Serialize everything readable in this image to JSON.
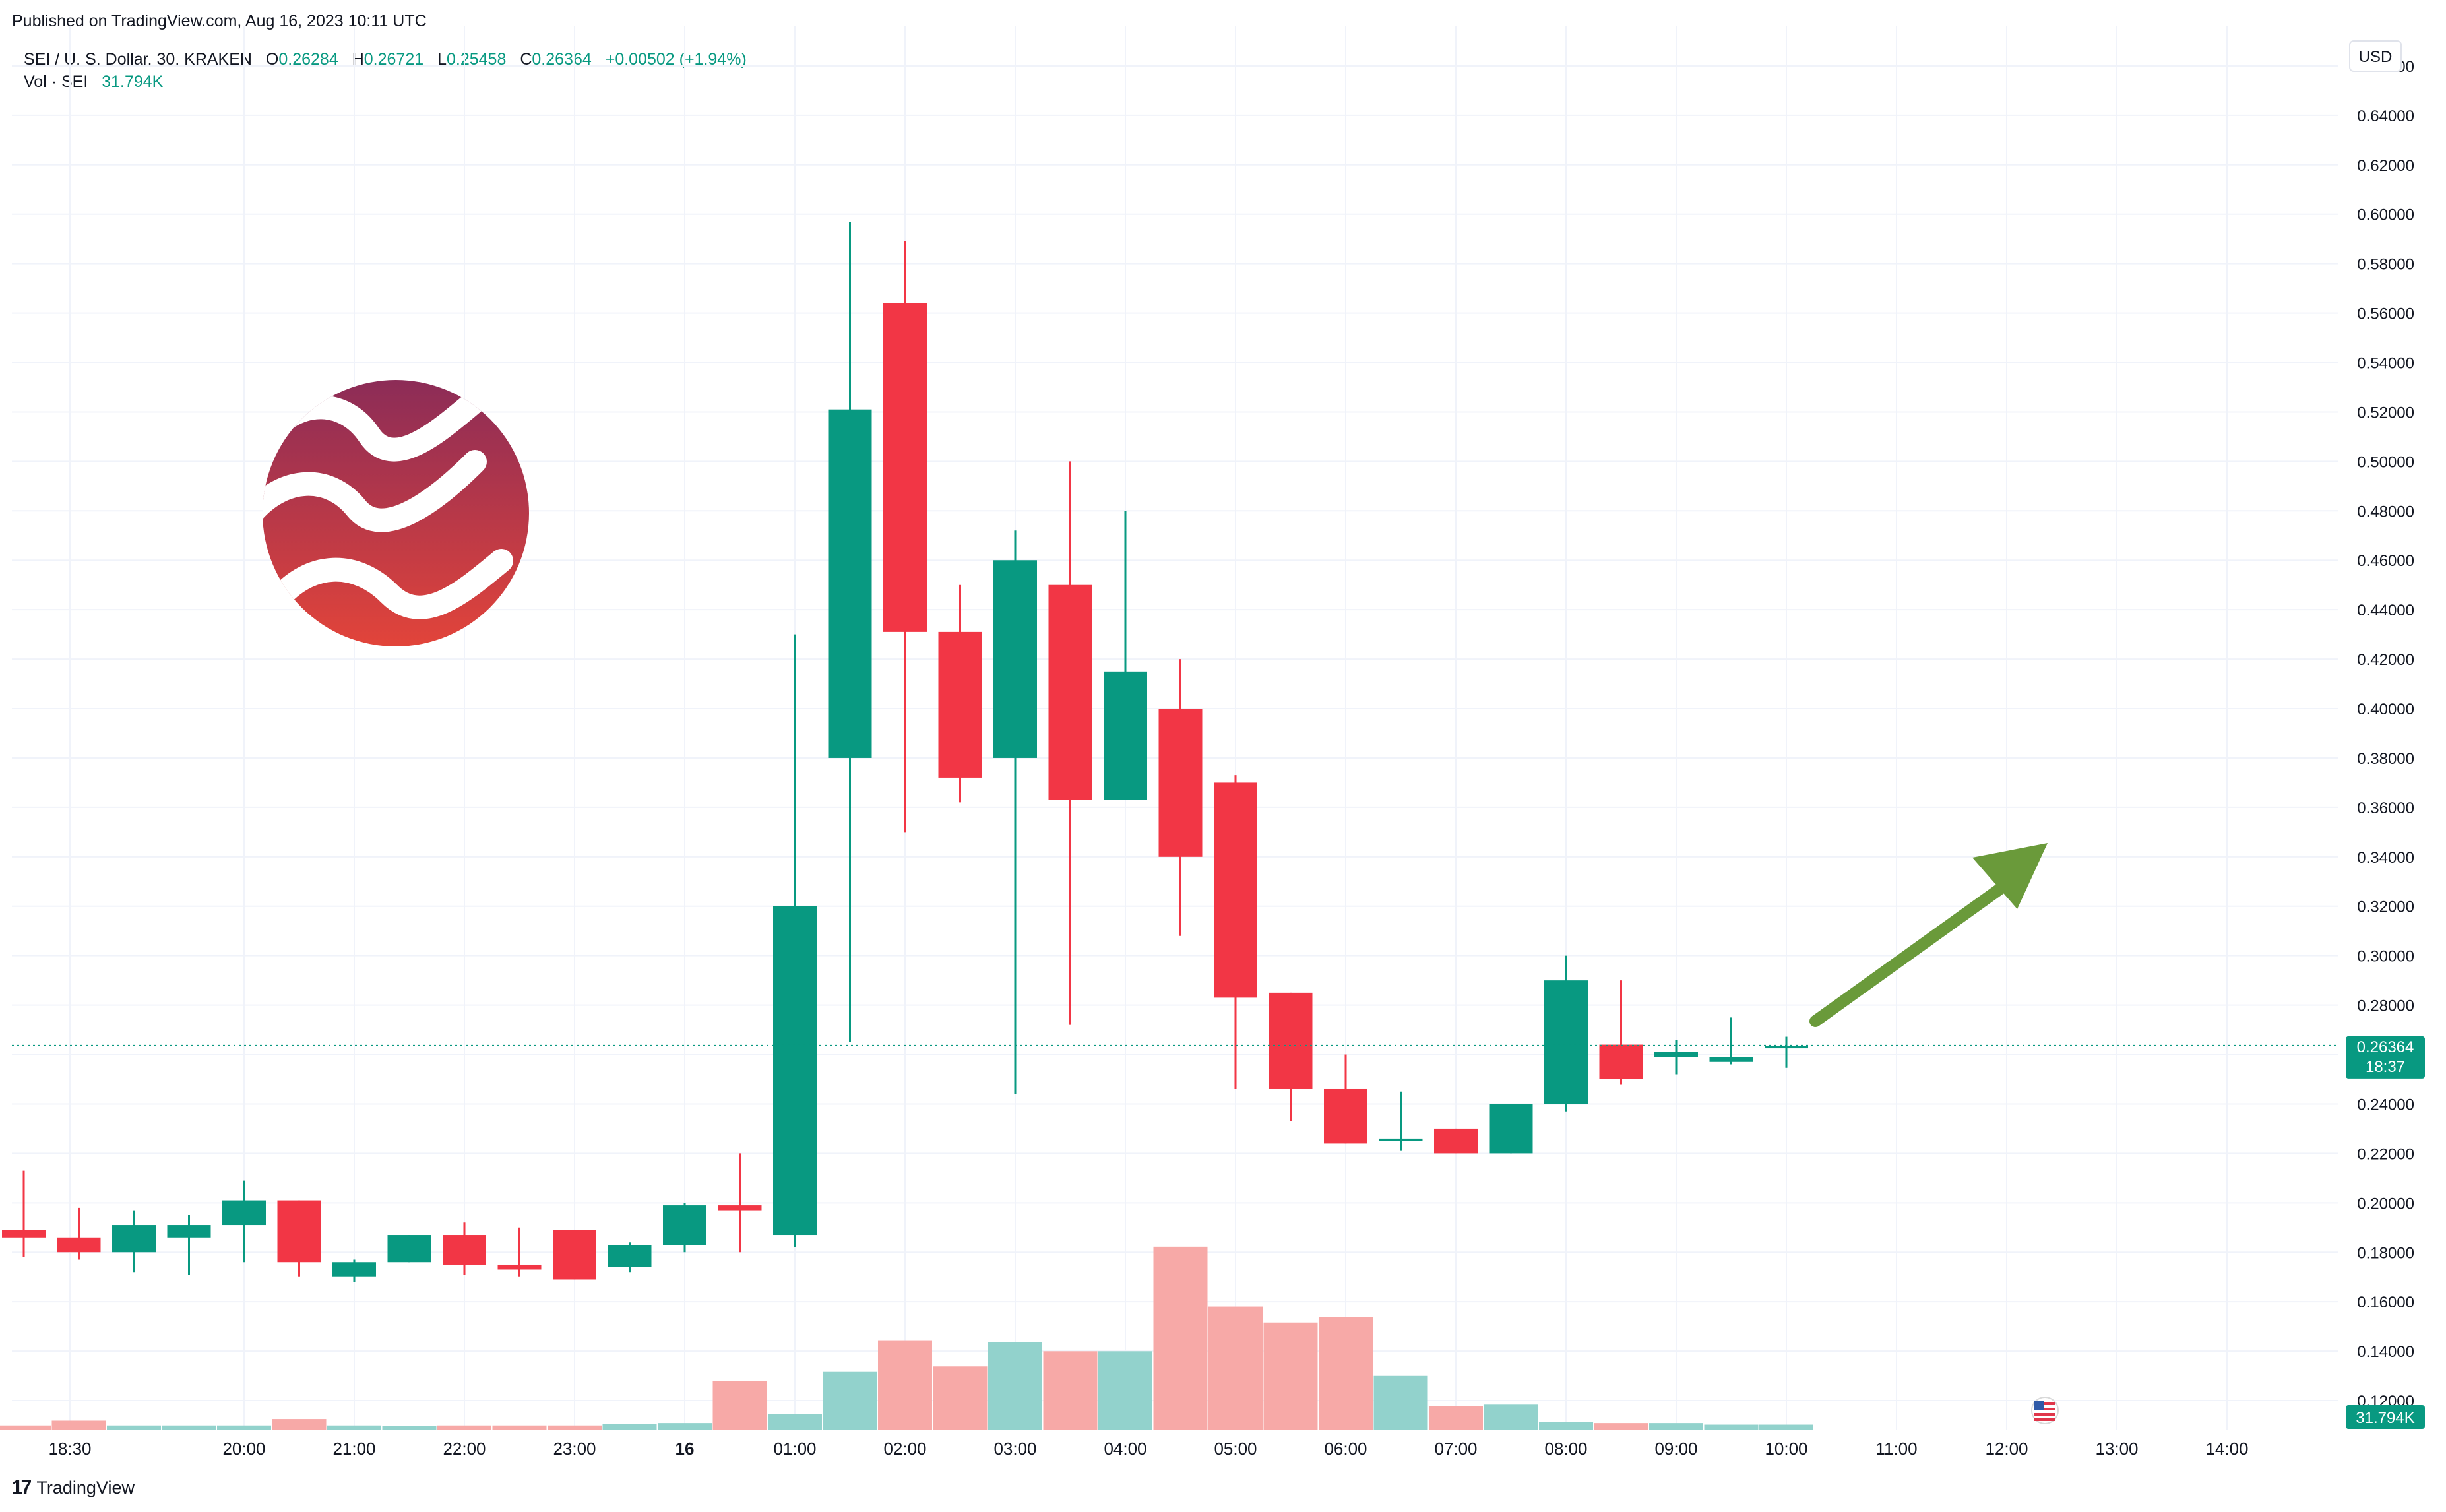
{
  "header": {
    "published": "Published on TradingView.com, Aug 16, 2023 10:11 UTC"
  },
  "legend": {
    "symbol": "SEI / U. S. Dollar, 30, KRAKEN",
    "o_label": "O",
    "o_value": "0.26284",
    "h_label": "H",
    "h_value": "0.26721",
    "l_label": "L",
    "l_value": "0.25458",
    "c_label": "C",
    "c_value": "0.26364",
    "change": "+0.00502 (+1.94%)",
    "vol_label": "Vol · SEI",
    "vol_value": "31.794K"
  },
  "price_axis": {
    "currency": "USD",
    "last_price": "0.26364",
    "countdown": "18:37",
    "last_volume": "31.794K"
  },
  "footer": {
    "brand": "TradingView",
    "brand_mark": "17"
  },
  "colors": {
    "up": "#089981",
    "down": "#f23645",
    "vol_up": "#92d2cc",
    "vol_down": "#f7a9a7",
    "arrow": "#6a9a3a"
  },
  "chart_data": {
    "type": "candlestick",
    "interval": "30",
    "y_range": [
      0.108,
      0.676
    ],
    "x_tick_labels": [
      "18:30",
      "20:00",
      "21:00",
      "22:00",
      "23:00",
      "16",
      "01:00",
      "02:00",
      "03:00",
      "04:00",
      "05:00",
      "06:00",
      "07:00",
      "08:00",
      "09:00",
      "10:00",
      "11:00",
      "12:00",
      "13:00",
      "14:00"
    ],
    "y_tick_labels": [
      "0.66000",
      "0.64000",
      "0.62000",
      "0.60000",
      "0.58000",
      "0.56000",
      "0.54000",
      "0.52000",
      "0.50000",
      "0.48000",
      "0.46000",
      "0.44000",
      "0.42000",
      "0.40000",
      "0.38000",
      "0.36000",
      "0.34000",
      "0.32000",
      "0.30000",
      "0.28000",
      "0.26000",
      "0.24000",
      "0.22000",
      "0.20000",
      "0.18000",
      "0.16000",
      "0.14000",
      "0.12000"
    ],
    "candles": [
      {
        "t": "18:30",
        "o": 0.189,
        "h": 0.213,
        "l": 0.178,
        "c": 0.186
      },
      {
        "t": "19:00",
        "o": 0.186,
        "h": 0.198,
        "l": 0.177,
        "c": 0.18
      },
      {
        "t": "19:30",
        "o": 0.18,
        "h": 0.197,
        "l": 0.172,
        "c": 0.191
      },
      {
        "t": "20:00",
        "o": 0.186,
        "h": 0.195,
        "l": 0.171,
        "c": 0.191
      },
      {
        "t": "20:30",
        "o": 0.191,
        "h": 0.209,
        "l": 0.176,
        "c": 0.201
      },
      {
        "t": "21:00",
        "o": 0.201,
        "h": 0.201,
        "l": 0.17,
        "c": 0.176
      },
      {
        "t": "21:30",
        "o": 0.17,
        "h": 0.177,
        "l": 0.168,
        "c": 0.176
      },
      {
        "t": "22:00",
        "o": 0.176,
        "h": 0.187,
        "l": 0.176,
        "c": 0.187
      },
      {
        "t": "22:30",
        "o": 0.187,
        "h": 0.192,
        "l": 0.171,
        "c": 0.175
      },
      {
        "t": "23:00",
        "o": 0.175,
        "h": 0.19,
        "l": 0.17,
        "c": 0.173
      },
      {
        "t": "23:30",
        "o": 0.189,
        "h": 0.189,
        "l": 0.169,
        "c": 0.169
      },
      {
        "t": "00:00",
        "o": 0.174,
        "h": 0.184,
        "l": 0.172,
        "c": 0.183
      },
      {
        "t": "00:30",
        "o": 0.183,
        "h": 0.2,
        "l": 0.18,
        "c": 0.199
      },
      {
        "t": "01:00",
        "o": 0.199,
        "h": 0.22,
        "l": 0.18,
        "c": 0.197
      },
      {
        "t": "01:30",
        "o": 0.187,
        "h": 0.43,
        "l": 0.182,
        "c": 0.32
      },
      {
        "t": "02:00",
        "o": 0.38,
        "h": 0.597,
        "l": 0.265,
        "c": 0.521
      },
      {
        "t": "02:30",
        "o": 0.564,
        "h": 0.589,
        "l": 0.35,
        "c": 0.431
      },
      {
        "t": "03:00",
        "o": 0.431,
        "h": 0.45,
        "l": 0.362,
        "c": 0.372
      },
      {
        "t": "03:30",
        "o": 0.38,
        "h": 0.472,
        "l": 0.244,
        "c": 0.46
      },
      {
        "t": "04:00",
        "o": 0.45,
        "h": 0.5,
        "l": 0.272,
        "c": 0.363
      },
      {
        "t": "04:30",
        "o": 0.363,
        "h": 0.48,
        "l": 0.363,
        "c": 0.415
      },
      {
        "t": "05:00",
        "o": 0.4,
        "h": 0.42,
        "l": 0.308,
        "c": 0.34
      },
      {
        "t": "05:30",
        "o": 0.37,
        "h": 0.373,
        "l": 0.246,
        "c": 0.283
      },
      {
        "t": "06:00",
        "o": 0.285,
        "h": 0.285,
        "l": 0.233,
        "c": 0.246
      },
      {
        "t": "06:30",
        "o": 0.246,
        "h": 0.26,
        "l": 0.224,
        "c": 0.224
      },
      {
        "t": "07:00",
        "o": 0.225,
        "h": 0.245,
        "l": 0.221,
        "c": 0.226
      },
      {
        "t": "07:30",
        "o": 0.23,
        "h": 0.23,
        "l": 0.22,
        "c": 0.22
      },
      {
        "t": "08:00",
        "o": 0.22,
        "h": 0.24,
        "l": 0.22,
        "c": 0.24
      },
      {
        "t": "08:30",
        "o": 0.24,
        "h": 0.3,
        "l": 0.237,
        "c": 0.29
      },
      {
        "t": "09:00",
        "o": 0.264,
        "h": 0.29,
        "l": 0.248,
        "c": 0.25
      },
      {
        "t": "09:30",
        "o": 0.259,
        "h": 0.266,
        "l": 0.252,
        "c": 0.261
      },
      {
        "t": "10:00",
        "o": 0.257,
        "h": 0.275,
        "l": 0.256,
        "c": 0.259
      },
      {
        "t": "10:30",
        "o": 0.2628,
        "h": 0.2672,
        "l": 0.2546,
        "c": 0.2636
      }
    ],
    "volume_max": 430,
    "volumes": [
      6,
      12,
      6,
      6,
      6,
      14,
      6,
      5,
      6,
      6,
      6,
      8,
      9,
      62,
      20,
      73,
      112,
      80,
      110,
      99,
      99,
      230,
      155,
      135,
      142,
      68,
      30,
      32,
      10,
      9,
      9,
      7,
      7
    ]
  }
}
